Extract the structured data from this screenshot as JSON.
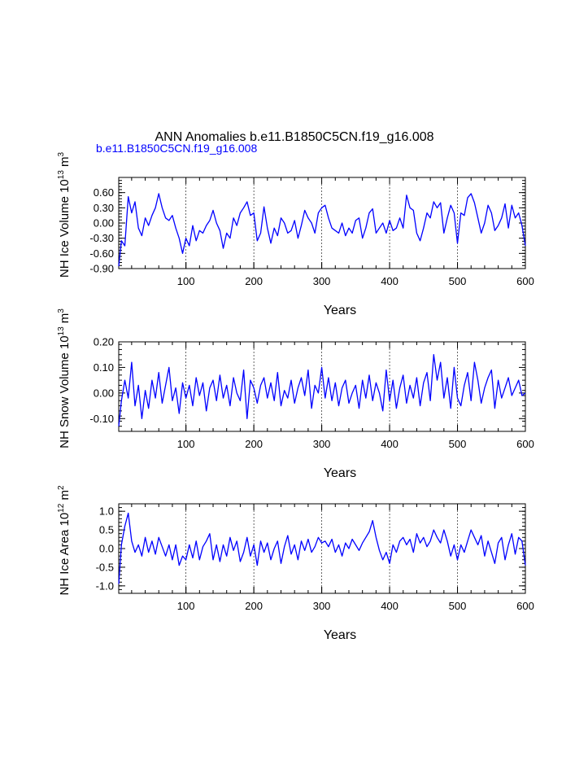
{
  "title": "ANN Anomalies b.e11.B1850C5CN.f19_g16.008",
  "subtitle": "b.e11.B1850C5CN.f19_g16.008",
  "colors": {
    "series": "#0000ff",
    "axes": "#000000",
    "background": "#ffffff"
  },
  "chart_data": [
    {
      "type": "line",
      "title": "",
      "xlabel": "Years",
      "ylabel_main": "NH Ice Volume 10",
      "ylabel_exp": "13",
      "ylabel_unit": " m",
      "ylabel_unit_exp": "3",
      "xlim": [
        1,
        600
      ],
      "ylim": [
        -0.9,
        0.9
      ],
      "xticks": [
        100,
        200,
        300,
        400,
        500,
        600
      ],
      "xtick_labels": [
        "100",
        "200",
        "300",
        "400",
        "500",
        "600"
      ],
      "yticks": [
        -0.9,
        -0.6,
        -0.3,
        0.0,
        0.3,
        0.6
      ],
      "ytick_labels": [
        "-0.90",
        "-0.60",
        "-0.30",
        "0.00",
        "0.30",
        "0.60"
      ],
      "grid": "dashed vertical at x ticks",
      "series": [
        {
          "name": "b.e11.B1850C5CN.f19_g16.008",
          "x": [
            1,
            5,
            10,
            15,
            20,
            25,
            30,
            35,
            40,
            45,
            50,
            55,
            60,
            65,
            70,
            75,
            80,
            85,
            90,
            95,
            100,
            105,
            110,
            115,
            120,
            125,
            130,
            135,
            140,
            145,
            150,
            155,
            160,
            165,
            170,
            175,
            180,
            185,
            190,
            195,
            200,
            205,
            210,
            215,
            220,
            225,
            230,
            235,
            240,
            245,
            250,
            255,
            260,
            265,
            270,
            275,
            280,
            285,
            290,
            295,
            300,
            305,
            310,
            315,
            320,
            325,
            330,
            335,
            340,
            345,
            350,
            355,
            360,
            365,
            370,
            375,
            380,
            385,
            390,
            395,
            400,
            405,
            410,
            415,
            420,
            425,
            430,
            435,
            440,
            445,
            450,
            455,
            460,
            465,
            470,
            475,
            480,
            485,
            490,
            495,
            500,
            505,
            510,
            515,
            520,
            525,
            530,
            535,
            540,
            545,
            550,
            555,
            560,
            565,
            570,
            575,
            580,
            585,
            590,
            595,
            600
          ],
          "values": [
            -0.85,
            -0.35,
            -0.45,
            0.52,
            0.2,
            0.42,
            -0.1,
            -0.25,
            0.1,
            -0.05,
            0.15,
            0.3,
            0.58,
            0.3,
            0.1,
            0.05,
            0.15,
            -0.1,
            -0.3,
            -0.6,
            -0.3,
            -0.45,
            -0.05,
            -0.35,
            -0.15,
            -0.2,
            -0.05,
            0.05,
            0.25,
            0.0,
            -0.15,
            -0.5,
            -0.2,
            -0.3,
            0.1,
            -0.05,
            0.2,
            0.3,
            0.42,
            0.15,
            0.2,
            -0.35,
            -0.2,
            0.32,
            -0.1,
            -0.4,
            -0.1,
            -0.25,
            0.1,
            0.0,
            -0.2,
            -0.15,
            0.05,
            -0.3,
            -0.05,
            0.25,
            0.1,
            0.0,
            -0.2,
            0.2,
            0.3,
            0.35,
            0.1,
            -0.1,
            -0.15,
            -0.2,
            0.0,
            -0.25,
            -0.1,
            -0.2,
            0.05,
            0.1,
            -0.3,
            -0.1,
            0.2,
            0.28,
            -0.2,
            -0.1,
            0.0,
            -0.2,
            0.05,
            -0.15,
            -0.1,
            0.1,
            -0.1,
            0.55,
            0.3,
            0.25,
            -0.2,
            -0.35,
            -0.1,
            0.2,
            0.1,
            0.42,
            0.3,
            0.4,
            -0.2,
            0.1,
            0.35,
            0.2,
            -0.4,
            0.2,
            0.15,
            0.5,
            0.58,
            0.4,
            0.1,
            -0.2,
            0.0,
            0.35,
            0.2,
            -0.15,
            -0.05,
            0.1,
            0.38,
            -0.1,
            0.35,
            0.1,
            0.2,
            -0.05,
            -0.45
          ]
        }
      ]
    },
    {
      "type": "line",
      "title": "",
      "xlabel": "Years",
      "ylabel_main": "NH Snow Volume 10",
      "ylabel_exp": "13",
      "ylabel_unit": " m",
      "ylabel_unit_exp": "3",
      "xlim": [
        1,
        600
      ],
      "ylim": [
        -0.15,
        0.2
      ],
      "xticks": [
        100,
        200,
        300,
        400,
        500,
        600
      ],
      "xtick_labels": [
        "100",
        "200",
        "300",
        "400",
        "500",
        "600"
      ],
      "yticks": [
        -0.1,
        0.0,
        0.1,
        0.2
      ],
      "ytick_labels": [
        "-0.10",
        "0.00",
        "0.10",
        "0.20"
      ],
      "grid": "dashed vertical at x ticks",
      "series": [
        {
          "name": "b.e11.B1850C5CN.f19_g16.008",
          "x": [
            1,
            5,
            10,
            15,
            20,
            25,
            30,
            35,
            40,
            45,
            50,
            55,
            60,
            65,
            70,
            75,
            80,
            85,
            90,
            95,
            100,
            105,
            110,
            115,
            120,
            125,
            130,
            135,
            140,
            145,
            150,
            155,
            160,
            165,
            170,
            175,
            180,
            185,
            190,
            195,
            200,
            205,
            210,
            215,
            220,
            225,
            230,
            235,
            240,
            245,
            250,
            255,
            260,
            265,
            270,
            275,
            280,
            285,
            290,
            295,
            300,
            305,
            310,
            315,
            320,
            325,
            330,
            335,
            340,
            345,
            350,
            355,
            360,
            365,
            370,
            375,
            380,
            385,
            390,
            395,
            400,
            405,
            410,
            415,
            420,
            425,
            430,
            435,
            440,
            445,
            450,
            455,
            460,
            465,
            470,
            475,
            480,
            485,
            490,
            495,
            500,
            505,
            510,
            515,
            520,
            525,
            530,
            535,
            540,
            545,
            550,
            555,
            560,
            565,
            570,
            575,
            580,
            585,
            590,
            595,
            600
          ],
          "values": [
            -0.13,
            -0.03,
            0.05,
            -0.02,
            0.12,
            -0.05,
            0.03,
            -0.1,
            0.01,
            -0.06,
            0.05,
            -0.02,
            0.08,
            -0.04,
            0.03,
            0.1,
            -0.03,
            0.02,
            -0.08,
            0.04,
            -0.02,
            0.03,
            -0.05,
            0.06,
            -0.01,
            0.04,
            -0.07,
            0.02,
            0.05,
            -0.03,
            0.07,
            -0.02,
            0.03,
            -0.05,
            0.06,
            0.0,
            -0.03,
            0.09,
            -0.1,
            0.05,
            0.02,
            -0.04,
            0.03,
            0.06,
            -0.02,
            0.04,
            -0.03,
            0.08,
            -0.05,
            0.01,
            -0.02,
            0.05,
            -0.04,
            0.02,
            0.06,
            -0.01,
            0.09,
            -0.06,
            0.03,
            0.0,
            0.1,
            -0.02,
            0.06,
            -0.03,
            0.04,
            -0.05,
            0.02,
            0.05,
            -0.04,
            0.0,
            0.03,
            -0.06,
            0.05,
            -0.02,
            0.07,
            -0.03,
            0.04,
            0.0,
            -0.07,
            0.09,
            -0.03,
            0.05,
            -0.06,
            0.02,
            0.07,
            -0.04,
            0.03,
            -0.02,
            0.06,
            -0.05,
            0.04,
            0.08,
            -0.03,
            0.15,
            0.05,
            0.12,
            -0.02,
            0.06,
            -0.06,
            0.1,
            -0.02,
            -0.05,
            0.03,
            0.08,
            -0.03,
            0.12,
            0.05,
            -0.04,
            0.02,
            0.06,
            0.09,
            -0.06,
            0.05,
            -0.02,
            0.02,
            0.06,
            -0.01,
            0.02,
            0.05,
            -0.01,
            0.0
          ]
        }
      ]
    },
    {
      "type": "line",
      "title": "",
      "xlabel": "Years",
      "ylabel_main": "NH Ice Area 10",
      "ylabel_exp": "12",
      "ylabel_unit": " m",
      "ylabel_unit_exp": "2",
      "xlim": [
        1,
        600
      ],
      "ylim": [
        -1.2,
        1.2
      ],
      "xticks": [
        100,
        200,
        300,
        400,
        500,
        600
      ],
      "xtick_labels": [
        "100",
        "200",
        "300",
        "400",
        "500",
        "600"
      ],
      "yticks": [
        -1.0,
        -0.5,
        0.0,
        0.5,
        1.0
      ],
      "ytick_labels": [
        "-1.0",
        "-0.5",
        "0.0",
        "0.5",
        "1.0"
      ],
      "grid": "dashed vertical at x ticks",
      "series": [
        {
          "name": "b.e11.B1850C5CN.f19_g16.008",
          "x": [
            1,
            5,
            10,
            15,
            20,
            25,
            30,
            35,
            40,
            45,
            50,
            55,
            60,
            65,
            70,
            75,
            80,
            85,
            90,
            95,
            100,
            105,
            110,
            115,
            120,
            125,
            130,
            135,
            140,
            145,
            150,
            155,
            160,
            165,
            170,
            175,
            180,
            185,
            190,
            195,
            200,
            205,
            210,
            215,
            220,
            225,
            230,
            235,
            240,
            245,
            250,
            255,
            260,
            265,
            270,
            275,
            280,
            285,
            290,
            295,
            300,
            305,
            310,
            315,
            320,
            325,
            330,
            335,
            340,
            345,
            350,
            355,
            360,
            365,
            370,
            375,
            380,
            385,
            390,
            395,
            400,
            405,
            410,
            415,
            420,
            425,
            430,
            435,
            440,
            445,
            450,
            455,
            460,
            465,
            470,
            475,
            480,
            485,
            490,
            495,
            500,
            505,
            510,
            515,
            520,
            525,
            530,
            535,
            540,
            545,
            550,
            555,
            560,
            565,
            570,
            575,
            580,
            585,
            590,
            595,
            600
          ],
          "values": [
            -0.95,
            0.1,
            0.6,
            0.95,
            0.2,
            -0.1,
            0.1,
            -0.2,
            0.3,
            -0.1,
            0.2,
            -0.15,
            0.3,
            0.05,
            -0.2,
            0.1,
            -0.3,
            0.1,
            -0.45,
            -0.2,
            -0.3,
            0.1,
            -0.25,
            0.2,
            -0.3,
            0.05,
            0.2,
            0.4,
            -0.3,
            0.1,
            -0.35,
            0.1,
            -0.2,
            0.3,
            -0.05,
            0.2,
            -0.35,
            -0.1,
            0.3,
            -0.2,
            0.1,
            -0.45,
            0.2,
            -0.1,
            0.15,
            -0.3,
            0.0,
            0.2,
            -0.4,
            0.05,
            0.35,
            -0.15,
            0.1,
            -0.3,
            0.2,
            -0.05,
            0.25,
            -0.1,
            0.05,
            0.3,
            0.15,
            0.2,
            0.05,
            0.25,
            -0.1,
            0.1,
            -0.2,
            0.15,
            0.0,
            0.25,
            0.1,
            -0.05,
            0.15,
            0.3,
            0.45,
            0.75,
            0.3,
            -0.05,
            -0.3,
            -0.1,
            -0.4,
            0.1,
            -0.1,
            0.2,
            0.3,
            0.1,
            0.25,
            -0.1,
            0.4,
            0.15,
            0.3,
            0.05,
            0.2,
            0.5,
            0.3,
            0.15,
            0.5,
            0.2,
            -0.2,
            0.1,
            -0.3,
            0.1,
            -0.1,
            0.2,
            0.5,
            0.3,
            0.1,
            0.35,
            -0.2,
            0.2,
            -0.1,
            -0.4,
            0.15,
            0.3,
            -0.3,
            0.1,
            0.4,
            -0.15,
            0.3,
            0.2,
            -0.45
          ]
        }
      ]
    }
  ]
}
